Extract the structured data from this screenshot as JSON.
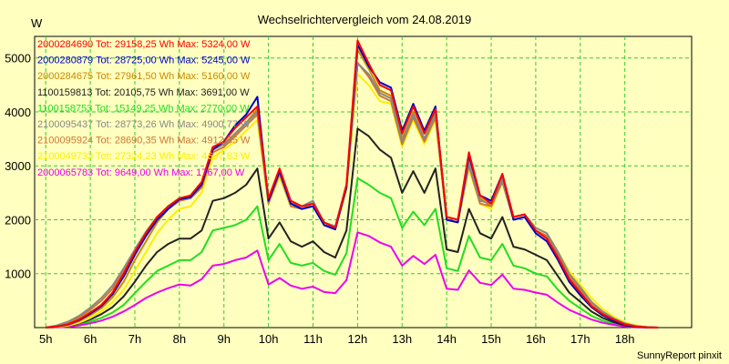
{
  "chart_data": {
    "type": "line",
    "title": "Wechselrichtervergleich vom 24.08.2019",
    "ylabel": "W",
    "xlabel": "",
    "footer": "SunnyReport pinxit",
    "ylim": [
      0,
      5400
    ],
    "xlim": [
      4.75,
      19.5
    ],
    "y_ticks": [
      1000,
      2000,
      3000,
      4000,
      5000
    ],
    "x_ticks": [
      5,
      6,
      7,
      8,
      9,
      10,
      11,
      12,
      13,
      14,
      15,
      16,
      17,
      18
    ],
    "x_tick_labels": [
      "5h",
      "6h",
      "7h",
      "8h",
      "9h",
      "10h",
      "11h",
      "12h",
      "13h",
      "14h",
      "15h",
      "16h",
      "17h",
      "18h"
    ],
    "grid": true,
    "series": [
      {
        "name": "2000284690",
        "legend_text": "2000284690 Tot: 29158,25 Wh Max: 5324,00 W",
        "color": "#FF0000",
        "x": [
          5.0,
          5.25,
          5.5,
          5.75,
          6.0,
          6.25,
          6.5,
          6.75,
          7.0,
          7.25,
          7.5,
          7.75,
          8.0,
          8.25,
          8.5,
          8.75,
          9.0,
          9.25,
          9.5,
          9.75,
          10.0,
          10.25,
          10.5,
          10.75,
          11.0,
          11.25,
          11.5,
          11.75,
          12.0,
          12.25,
          12.5,
          12.75,
          13.0,
          13.25,
          13.5,
          13.75,
          14.0,
          14.25,
          14.5,
          14.75,
          15.0,
          15.25,
          15.5,
          15.75,
          16.0,
          16.25,
          16.5,
          16.75,
          17.0,
          17.25,
          17.5,
          17.75,
          18.0,
          18.25,
          18.5,
          18.75
        ],
        "values": [
          0,
          20,
          60,
          150,
          280,
          420,
          650,
          1000,
          1400,
          1750,
          2050,
          2250,
          2400,
          2450,
          2700,
          3350,
          3450,
          3700,
          3900,
          4100,
          2400,
          2950,
          2350,
          2250,
          2300,
          1950,
          1850,
          2650,
          5324,
          4900,
          4500,
          4400,
          3600,
          4100,
          3600,
          4050,
          2050,
          2000,
          3250,
          2450,
          2300,
          2850,
          2050,
          2100,
          1800,
          1650,
          1300,
          900,
          650,
          400,
          250,
          150,
          60,
          20,
          5,
          0
        ]
      },
      {
        "name": "2000280879",
        "legend_text": "2000280879 Tot: 28725,00 Wh Max: 5245,00 W",
        "color": "#0000CC",
        "x": [
          5.0,
          5.25,
          5.5,
          5.75,
          6.0,
          6.25,
          6.5,
          6.75,
          7.0,
          7.25,
          7.5,
          7.75,
          8.0,
          8.25,
          8.5,
          8.75,
          9.0,
          9.25,
          9.5,
          9.75,
          10.0,
          10.25,
          10.5,
          10.75,
          11.0,
          11.25,
          11.5,
          11.75,
          12.0,
          12.25,
          12.5,
          12.75,
          13.0,
          13.25,
          13.5,
          13.75,
          14.0,
          14.25,
          14.5,
          14.75,
          15.0,
          15.25,
          15.5,
          15.75,
          16.0,
          16.25,
          16.5,
          16.75,
          17.0,
          17.25,
          17.5,
          17.75,
          18.0,
          18.25,
          18.5,
          18.75
        ],
        "values": [
          0,
          20,
          55,
          140,
          260,
          400,
          620,
          950,
          1350,
          1700,
          2000,
          2200,
          2380,
          2420,
          2650,
          3300,
          3450,
          3750,
          3950,
          4280,
          2350,
          2900,
          2300,
          2200,
          2250,
          1900,
          1820,
          2600,
          5245,
          4850,
          4550,
          4450,
          3650,
          4150,
          3650,
          4100,
          2000,
          1950,
          3200,
          2450,
          2350,
          2850,
          2000,
          2050,
          1750,
          1600,
          1250,
          850,
          600,
          380,
          230,
          130,
          55,
          15,
          5,
          0
        ]
      },
      {
        "name": "2000284675",
        "legend_text": "2000284675 Tot: 27961,50 Wh Max: 5160,00 W",
        "color": "#CC8800",
        "x": [
          5.0,
          5.25,
          5.5,
          5.75,
          6.0,
          6.25,
          6.5,
          6.75,
          7.0,
          7.25,
          7.5,
          7.75,
          8.0,
          8.25,
          8.5,
          8.75,
          9.0,
          9.25,
          9.5,
          9.75,
          10.0,
          10.25,
          10.5,
          10.75,
          11.0,
          11.25,
          11.5,
          11.75,
          12.0,
          12.25,
          12.5,
          12.75,
          13.0,
          13.25,
          13.5,
          13.75,
          14.0,
          14.25,
          14.5,
          14.75,
          15.0,
          15.25,
          15.5,
          15.75,
          16.0,
          16.25,
          16.5,
          16.75,
          17.0,
          17.25,
          17.5,
          17.75,
          18.0,
          18.25,
          18.5,
          18.75
        ],
        "values": [
          0,
          15,
          50,
          120,
          230,
          360,
          560,
          850,
          1250,
          1600,
          1950,
          2200,
          2350,
          2400,
          2600,
          3300,
          3400,
          3600,
          3800,
          4050,
          2350,
          2900,
          2300,
          2250,
          2300,
          1950,
          1850,
          2600,
          5160,
          4800,
          4400,
          4300,
          3500,
          4000,
          3500,
          4000,
          2050,
          2000,
          3100,
          2400,
          2250,
          2800,
          2050,
          2100,
          1800,
          1700,
          1350,
          950,
          700,
          450,
          280,
          160,
          70,
          25,
          8,
          0
        ]
      },
      {
        "name": "1100159813",
        "legend_text": "1100159813 Tot: 20105,75 Wh Max: 3691,00 W",
        "color": "#222222",
        "x": [
          5.0,
          5.25,
          5.5,
          5.75,
          6.0,
          6.25,
          6.5,
          6.75,
          7.0,
          7.25,
          7.5,
          7.75,
          8.0,
          8.25,
          8.5,
          8.75,
          9.0,
          9.25,
          9.5,
          9.75,
          10.0,
          10.25,
          10.5,
          10.75,
          11.0,
          11.25,
          11.5,
          11.75,
          12.0,
          12.25,
          12.5,
          12.75,
          13.0,
          13.25,
          13.5,
          13.75,
          14.0,
          14.25,
          14.5,
          14.75,
          15.0,
          15.25,
          15.5,
          15.75,
          16.0,
          16.25,
          16.5,
          16.75,
          17.0,
          17.25,
          17.5,
          17.75,
          18.0,
          18.25,
          18.5,
          18.75
        ],
        "values": [
          0,
          10,
          30,
          80,
          150,
          250,
          380,
          580,
          850,
          1150,
          1400,
          1550,
          1650,
          1650,
          1800,
          2350,
          2400,
          2500,
          2650,
          2950,
          1650,
          1950,
          1600,
          1500,
          1600,
          1400,
          1300,
          1800,
          3691,
          3550,
          3300,
          3150,
          2500,
          2900,
          2500,
          2950,
          1450,
          1400,
          2200,
          1750,
          1650,
          2050,
          1500,
          1450,
          1350,
          1250,
          950,
          650,
          480,
          300,
          180,
          100,
          40,
          15,
          5,
          0
        ]
      },
      {
        "name": "1100158753",
        "legend_text": "1100158753 Tot: 15149,25 Wh Max: 2770,00 W",
        "color": "#22DD22",
        "x": [
          5.0,
          5.25,
          5.5,
          5.75,
          6.0,
          6.25,
          6.5,
          6.75,
          7.0,
          7.25,
          7.5,
          7.75,
          8.0,
          8.25,
          8.5,
          8.75,
          9.0,
          9.25,
          9.5,
          9.75,
          10.0,
          10.25,
          10.5,
          10.75,
          11.0,
          11.25,
          11.5,
          11.75,
          12.0,
          12.25,
          12.5,
          12.75,
          13.0,
          13.25,
          13.5,
          13.75,
          14.0,
          14.25,
          14.5,
          14.75,
          15.0,
          15.25,
          15.5,
          15.75,
          16.0,
          16.25,
          16.5,
          16.75,
          17.0,
          17.25,
          17.5,
          17.75,
          18.0,
          18.25,
          18.5,
          18.75
        ],
        "values": [
          0,
          8,
          20,
          60,
          110,
          180,
          280,
          420,
          640,
          850,
          1050,
          1150,
          1250,
          1250,
          1400,
          1800,
          1850,
          1900,
          2000,
          2250,
          1250,
          1550,
          1200,
          1150,
          1200,
          1050,
          980,
          1380,
          2770,
          2650,
          2500,
          2400,
          1850,
          2150,
          1900,
          2200,
          1100,
          1050,
          1700,
          1300,
          1250,
          1550,
          1150,
          1100,
          1000,
          950,
          700,
          500,
          360,
          220,
          130,
          70,
          30,
          10,
          3,
          0
        ]
      },
      {
        "name": "2100095437",
        "legend_text": "2100095437 Tot: 28773,26 Wh Max: 4900,77 W",
        "color": "#888888",
        "x": [
          5.0,
          5.25,
          5.5,
          5.75,
          6.0,
          6.25,
          6.5,
          6.75,
          7.0,
          7.25,
          7.5,
          7.75,
          8.0,
          8.25,
          8.5,
          8.75,
          9.0,
          9.25,
          9.5,
          9.75,
          10.0,
          10.25,
          10.5,
          10.75,
          11.0,
          11.25,
          11.5,
          11.75,
          12.0,
          12.25,
          12.5,
          12.75,
          13.0,
          13.25,
          13.5,
          13.75,
          14.0,
          14.25,
          14.5,
          14.75,
          15.0,
          15.25,
          15.5,
          15.75,
          16.0,
          16.25,
          16.5,
          16.75,
          17.0,
          17.25,
          17.5,
          17.75,
          18.0,
          18.25,
          18.5,
          18.75
        ],
        "values": [
          0,
          40,
          110,
          220,
          370,
          550,
          780,
          1100,
          1450,
          1780,
          2050,
          2250,
          2400,
          2400,
          2650,
          3300,
          3400,
          3600,
          3800,
          4000,
          2350,
          2900,
          2300,
          2250,
          2350,
          1950,
          1880,
          2650,
          4900,
          4700,
          4350,
          4250,
          3450,
          3950,
          3500,
          3950,
          2050,
          2000,
          3050,
          2350,
          2300,
          2750,
          2050,
          2100,
          1850,
          1750,
          1400,
          1000,
          750,
          480,
          300,
          170,
          80,
          30,
          10,
          0
        ]
      },
      {
        "name": "2100095924",
        "legend_text": "2100095924 Tot: 28690,35 Wh Max: 4912,35 W",
        "color": "#CC7733",
        "x": [
          5.0,
          5.25,
          5.5,
          5.75,
          6.0,
          6.25,
          6.5,
          6.75,
          7.0,
          7.25,
          7.5,
          7.75,
          8.0,
          8.25,
          8.5,
          8.75,
          9.0,
          9.25,
          9.5,
          9.75,
          10.0,
          10.25,
          10.5,
          10.75,
          11.0,
          11.25,
          11.5,
          11.75,
          12.0,
          12.25,
          12.5,
          12.75,
          13.0,
          13.25,
          13.5,
          13.75,
          14.0,
          14.25,
          14.5,
          14.75,
          15.0,
          15.25,
          15.5,
          15.75,
          16.0,
          16.25,
          16.5,
          16.75,
          17.0,
          17.25,
          17.5,
          17.75,
          18.0,
          18.25,
          18.5,
          18.75
        ],
        "values": [
          0,
          30,
          90,
          190,
          330,
          500,
          720,
          1050,
          1400,
          1720,
          2000,
          2200,
          2350,
          2400,
          2600,
          3250,
          3350,
          3550,
          3750,
          3950,
          2300,
          2850,
          2250,
          2200,
          2300,
          1900,
          1850,
          2600,
          4912,
          4650,
          4300,
          4200,
          3400,
          3900,
          3450,
          3900,
          2000,
          1950,
          3000,
          2300,
          2250,
          2700,
          2000,
          2050,
          1800,
          1700,
          1350,
          950,
          700,
          450,
          280,
          160,
          75,
          25,
          8,
          0
        ]
      },
      {
        "name": "2100049733",
        "legend_text": "2100049733 Tot: 27324,23 Wh Max: 4697,83 W",
        "color": "#FFEE00",
        "x": [
          5.0,
          5.25,
          5.5,
          5.75,
          6.0,
          6.25,
          6.5,
          6.75,
          7.0,
          7.25,
          7.5,
          7.75,
          8.0,
          8.25,
          8.5,
          8.75,
          9.0,
          9.25,
          9.5,
          9.75,
          10.0,
          10.25,
          10.5,
          10.75,
          11.0,
          11.25,
          11.5,
          11.75,
          12.0,
          12.25,
          12.5,
          12.75,
          13.0,
          13.25,
          13.5,
          13.75,
          14.0,
          14.25,
          14.5,
          14.75,
          15.0,
          15.25,
          15.5,
          15.75,
          16.0,
          16.25,
          16.5,
          16.75,
          17.0,
          17.25,
          17.5,
          17.75,
          18.0,
          18.25,
          18.5,
          18.75
        ],
        "values": [
          0,
          10,
          35,
          90,
          180,
          300,
          470,
          700,
          1050,
          1400,
          1750,
          2000,
          2200,
          2250,
          2500,
          3150,
          3300,
          3450,
          3650,
          3850,
          2300,
          2800,
          2250,
          2200,
          2300,
          1900,
          1820,
          2550,
          4700,
          4500,
          4200,
          4150,
          3350,
          3850,
          3400,
          3850,
          2000,
          1950,
          2950,
          2300,
          2200,
          2700,
          2050,
          2100,
          1850,
          1750,
          1400,
          1050,
          800,
          550,
          350,
          200,
          100,
          40,
          12,
          0
        ]
      },
      {
        "name": "2000065783",
        "legend_text": "2000065783 Tot: 9649,00 Wh Max: 1767,00 W",
        "color": "#EE00EE",
        "x": [
          5.0,
          5.25,
          5.5,
          5.75,
          6.0,
          6.25,
          6.5,
          6.75,
          7.0,
          7.25,
          7.5,
          7.75,
          8.0,
          8.25,
          8.5,
          8.75,
          9.0,
          9.25,
          9.5,
          9.75,
          10.0,
          10.25,
          10.5,
          10.75,
          11.0,
          11.25,
          11.5,
          11.75,
          12.0,
          12.25,
          12.5,
          12.75,
          13.0,
          13.25,
          13.5,
          13.75,
          14.0,
          14.25,
          14.5,
          14.75,
          15.0,
          15.25,
          15.5,
          15.75,
          16.0,
          16.25,
          16.5,
          16.75,
          17.0,
          17.25,
          17.5,
          17.75,
          18.0,
          18.25,
          18.5,
          18.75
        ],
        "values": [
          0,
          5,
          15,
          40,
          80,
          130,
          200,
          300,
          420,
          550,
          650,
          730,
          800,
          780,
          900,
          1150,
          1180,
          1250,
          1300,
          1430,
          800,
          920,
          780,
          720,
          760,
          660,
          640,
          880,
          1767,
          1700,
          1580,
          1500,
          1150,
          1330,
          1180,
          1350,
          720,
          700,
          1060,
          830,
          790,
          980,
          720,
          700,
          650,
          610,
          460,
          330,
          240,
          150,
          90,
          50,
          20,
          6,
          2,
          0
        ]
      }
    ]
  }
}
